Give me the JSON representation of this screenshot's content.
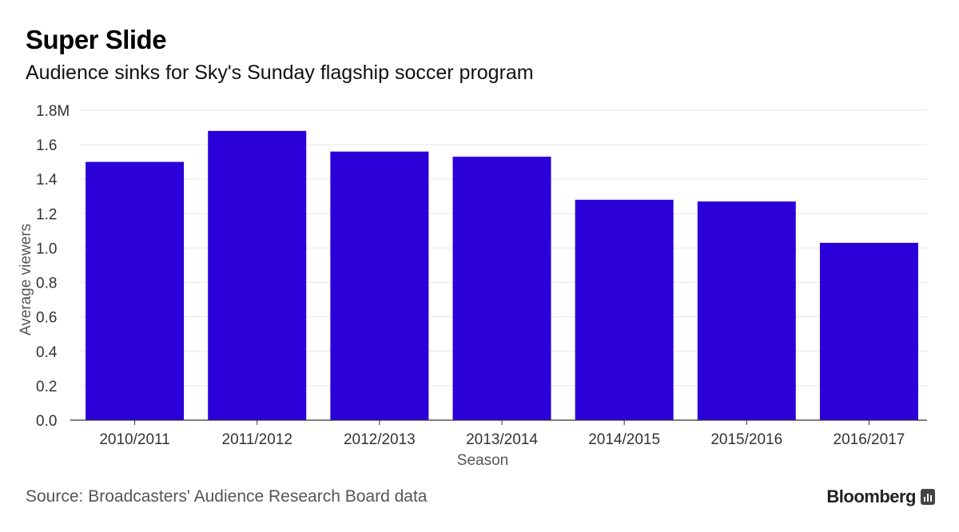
{
  "header": {
    "title": "Super Slide",
    "subtitle": "Audience sinks for Sky's Sunday flagship soccer program"
  },
  "footer": {
    "source": "Source: Broadcasters' Audience Research Board data",
    "brand": "Bloomberg",
    "brand_icon": "bloomberg-terminal-icon"
  },
  "colors": {
    "bar": "#2b00d9",
    "grid": "#e6e6e6",
    "axis": "#333333"
  },
  "chart_data": {
    "type": "bar",
    "title": "Super Slide",
    "subtitle": "Audience sinks for Sky's Sunday flagship soccer program",
    "xlabel": "Season",
    "ylabel": "Average viewers",
    "categories": [
      "2010/2011",
      "2011/2012",
      "2012/2013",
      "2013/2014",
      "2014/2015",
      "2015/2016",
      "2016/2017"
    ],
    "values": [
      1.5,
      1.68,
      1.56,
      1.53,
      1.28,
      1.27,
      1.03
    ],
    "ylim": [
      0,
      1.8
    ],
    "yticks": [
      0,
      0.2,
      0.4,
      0.6,
      0.8,
      1.0,
      1.2,
      1.4,
      1.6,
      1.8
    ],
    "ytick_labels": [
      "0.0",
      "0.2",
      "0.4",
      "0.6",
      "0.8",
      "1.0",
      "1.2",
      "1.4",
      "1.6",
      "1.8M"
    ],
    "grid": true,
    "legend": "none"
  }
}
